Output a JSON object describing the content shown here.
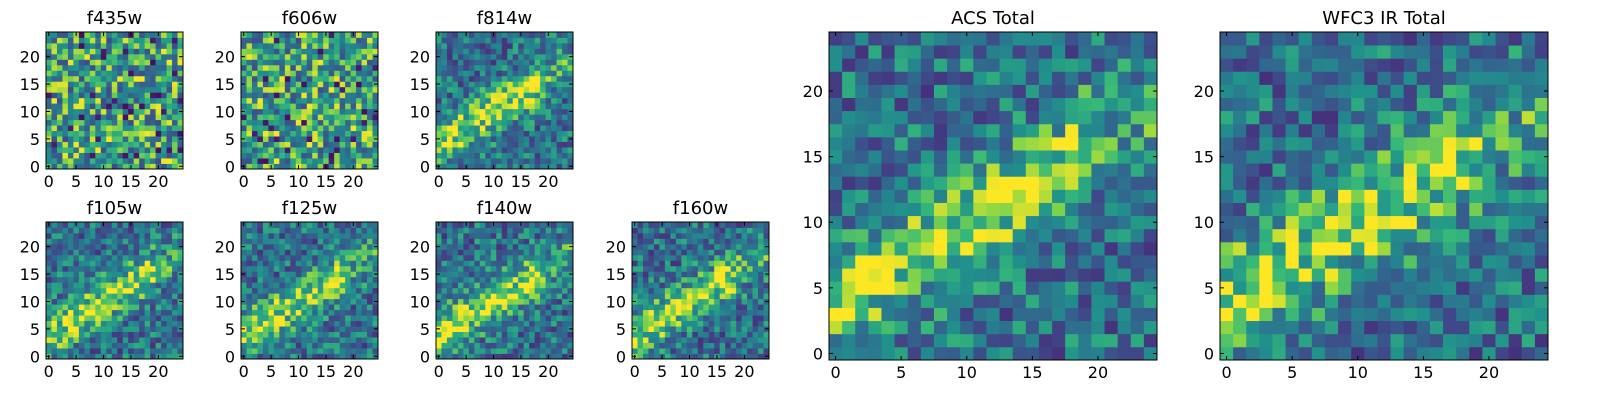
{
  "chart_data": [
    {
      "type": "heatmap",
      "title": "f435w",
      "xticks": [
        "0",
        "5",
        "10",
        "15",
        "20"
      ],
      "yticks": [
        "0",
        "5",
        "10",
        "15",
        "20"
      ],
      "xlim": [
        0,
        25
      ],
      "ylim": [
        0,
        25
      ],
      "grid_size": 25,
      "pattern": "noise",
      "colormap": "viridis"
    },
    {
      "type": "heatmap",
      "title": "f606w",
      "xticks": [
        "0",
        "5",
        "10",
        "15",
        "20"
      ],
      "yticks": [
        "0",
        "5",
        "10",
        "15",
        "20"
      ],
      "xlim": [
        0,
        25
      ],
      "ylim": [
        0,
        25
      ],
      "grid_size": 25,
      "pattern": "noise",
      "colormap": "viridis"
    },
    {
      "type": "heatmap",
      "title": "f814w",
      "xticks": [
        "0",
        "5",
        "10",
        "15",
        "20"
      ],
      "yticks": [
        "0",
        "5",
        "10",
        "15",
        "20"
      ],
      "xlim": [
        0,
        25
      ],
      "ylim": [
        0,
        25
      ],
      "grid_size": 25,
      "pattern": "diagonal-streak",
      "colormap": "viridis"
    },
    {
      "type": "heatmap",
      "title": "f105w",
      "xticks": [
        "0",
        "5",
        "10",
        "15",
        "20"
      ],
      "yticks": [
        "0",
        "5",
        "10",
        "15",
        "20"
      ],
      "xlim": [
        0,
        25
      ],
      "ylim": [
        0,
        25
      ],
      "grid_size": 25,
      "pattern": "diagonal-streak",
      "colormap": "viridis"
    },
    {
      "type": "heatmap",
      "title": "f125w",
      "xticks": [
        "0",
        "5",
        "10",
        "15",
        "20"
      ],
      "yticks": [
        "0",
        "5",
        "10",
        "15",
        "20"
      ],
      "xlim": [
        0,
        25
      ],
      "ylim": [
        0,
        25
      ],
      "grid_size": 25,
      "pattern": "diagonal-streak",
      "colormap": "viridis"
    },
    {
      "type": "heatmap",
      "title": "f140w",
      "xticks": [
        "0",
        "5",
        "10",
        "15",
        "20"
      ],
      "yticks": [
        "0",
        "5",
        "10",
        "15",
        "20"
      ],
      "xlim": [
        0,
        25
      ],
      "ylim": [
        0,
        25
      ],
      "grid_size": 25,
      "pattern": "diagonal-streak",
      "colormap": "viridis"
    },
    {
      "type": "heatmap",
      "title": "f160w",
      "xticks": [
        "0",
        "5",
        "10",
        "15",
        "20"
      ],
      "yticks": [
        "0",
        "5",
        "10",
        "15",
        "20"
      ],
      "xlim": [
        0,
        25
      ],
      "ylim": [
        0,
        25
      ],
      "grid_size": 25,
      "pattern": "diagonal-streak",
      "colormap": "viridis"
    },
    {
      "type": "heatmap",
      "title": "ACS Total",
      "xticks": [
        "0",
        "5",
        "10",
        "15",
        "20"
      ],
      "yticks": [
        "0",
        "5",
        "10",
        "15",
        "20"
      ],
      "xlim": [
        0,
        25
      ],
      "ylim": [
        0,
        25
      ],
      "grid_size": 25,
      "pattern": "diagonal-streak",
      "colormap": "viridis"
    },
    {
      "type": "heatmap",
      "title": "WFC3 IR Total",
      "xticks": [
        "0",
        "5",
        "10",
        "15",
        "20"
      ],
      "yticks": [
        "0",
        "5",
        "10",
        "15",
        "20"
      ],
      "xlim": [
        0,
        25
      ],
      "ylim": [
        0,
        25
      ],
      "grid_size": 25,
      "pattern": "diagonal-streak",
      "colormap": "viridis"
    }
  ]
}
